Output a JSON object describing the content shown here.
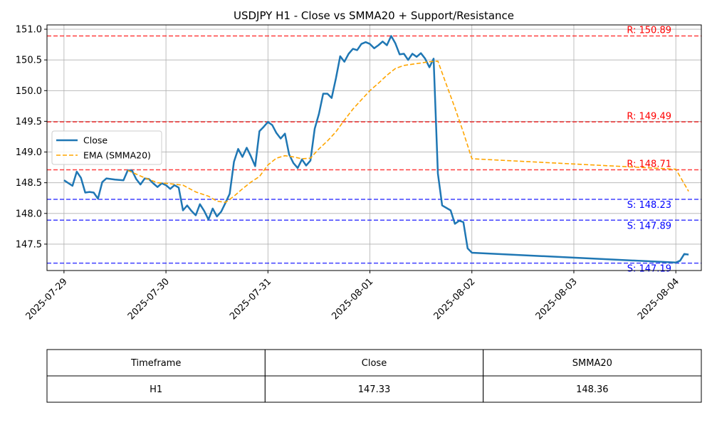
{
  "chart_data": {
    "type": "line",
    "title": "USDJPY H1 - Close vs SMMA20 + Support/Resistance",
    "xlabel": "",
    "ylabel": "",
    "x_ticks": [
      "2025-07-29",
      "2025-07-30",
      "2025-07-31",
      "2025-08-01",
      "2025-08-02",
      "2025-08-03",
      "2025-08-04"
    ],
    "y_ticks": [
      147.5,
      148.0,
      148.5,
      149.0,
      149.5,
      150.0,
      150.5,
      151.0
    ],
    "xlim": [
      "2025-07-28T20:00",
      "2025-08-04T06:00"
    ],
    "ylim": [
      147.07,
      151.07
    ],
    "grid": true,
    "legend": {
      "placement": "center-left",
      "entries": [
        "Close",
        "EMA (SMMA20)"
      ]
    },
    "colors": {
      "close": "#1f77b4",
      "ema": "#ffa500",
      "resistance": "#ff0000",
      "support": "#0000ff"
    },
    "series": [
      {
        "name": "Close",
        "x": [
          "2025-07-29T00:00",
          "2025-07-29T02:00",
          "2025-07-29T03:00",
          "2025-07-29T04:00",
          "2025-07-29T05:00",
          "2025-07-29T06:00",
          "2025-07-29T07:00",
          "2025-07-29T08:00",
          "2025-07-29T09:00",
          "2025-07-29T10:00",
          "2025-07-29T12:00",
          "2025-07-29T14:00",
          "2025-07-29T15:00",
          "2025-07-29T16:00",
          "2025-07-29T17:00",
          "2025-07-29T18:00",
          "2025-07-29T19:00",
          "2025-07-29T20:00",
          "2025-07-29T21:00",
          "2025-07-29T22:00",
          "2025-07-29T23:00",
          "2025-07-30T00:00",
          "2025-07-30T01:00",
          "2025-07-30T02:00",
          "2025-07-30T03:00",
          "2025-07-30T04:00",
          "2025-07-30T05:00",
          "2025-07-30T06:00",
          "2025-07-30T07:00",
          "2025-07-30T08:00",
          "2025-07-30T09:00",
          "2025-07-30T10:00",
          "2025-07-30T11:00",
          "2025-07-30T12:00",
          "2025-07-30T13:00",
          "2025-07-30T14:00",
          "2025-07-30T15:00",
          "2025-07-30T16:00",
          "2025-07-30T17:00",
          "2025-07-30T18:00",
          "2025-07-30T19:00",
          "2025-07-30T20:00",
          "2025-07-30T21:00",
          "2025-07-30T22:00",
          "2025-07-30T23:00",
          "2025-07-31T00:00",
          "2025-07-31T01:00",
          "2025-07-31T02:00",
          "2025-07-31T03:00",
          "2025-07-31T04:00",
          "2025-07-31T05:00",
          "2025-07-31T06:00",
          "2025-07-31T07:00",
          "2025-07-31T08:00",
          "2025-07-31T09:00",
          "2025-07-31T10:00",
          "2025-07-31T11:00",
          "2025-07-31T12:00",
          "2025-07-31T13:00",
          "2025-07-31T14:00",
          "2025-07-31T15:00",
          "2025-07-31T16:00",
          "2025-07-31T17:00",
          "2025-07-31T18:00",
          "2025-07-31T19:00",
          "2025-07-31T20:00",
          "2025-07-31T21:00",
          "2025-07-31T22:00",
          "2025-07-31T23:00",
          "2025-08-01T00:00",
          "2025-08-01T01:00",
          "2025-08-01T02:00",
          "2025-08-01T03:00",
          "2025-08-01T04:00",
          "2025-08-01T05:00",
          "2025-08-01T06:00",
          "2025-08-01T07:00",
          "2025-08-01T08:00",
          "2025-08-01T09:00",
          "2025-08-01T10:00",
          "2025-08-01T11:00",
          "2025-08-01T12:00",
          "2025-08-01T13:00",
          "2025-08-01T14:00",
          "2025-08-01T15:00",
          "2025-08-01T16:00",
          "2025-08-01T17:00",
          "2025-08-01T18:00",
          "2025-08-01T19:00",
          "2025-08-01T20:00",
          "2025-08-01T21:00",
          "2025-08-01T22:00",
          "2025-08-01T23:00",
          "2025-08-02T00:00",
          "2025-08-04T00:00",
          "2025-08-04T01:00",
          "2025-08-04T02:00",
          "2025-08-04T03:00"
        ],
        "y": [
          148.54,
          148.45,
          148.68,
          148.58,
          148.34,
          148.35,
          148.34,
          148.24,
          148.51,
          148.57,
          148.55,
          148.54,
          148.7,
          148.7,
          148.56,
          148.47,
          148.57,
          148.56,
          148.49,
          148.43,
          148.49,
          148.46,
          148.4,
          148.46,
          148.42,
          148.05,
          148.13,
          148.04,
          147.97,
          148.15,
          148.04,
          147.9,
          148.08,
          147.95,
          148.03,
          148.17,
          148.32,
          148.84,
          149.05,
          148.92,
          149.07,
          148.93,
          148.77,
          149.34,
          149.41,
          149.49,
          149.44,
          149.31,
          149.22,
          149.3,
          148.96,
          148.82,
          148.74,
          148.88,
          148.78,
          148.86,
          149.38,
          149.62,
          149.95,
          149.95,
          149.88,
          150.2,
          150.56,
          150.47,
          150.6,
          150.68,
          150.66,
          150.76,
          150.79,
          150.76,
          150.69,
          150.74,
          150.8,
          150.74,
          150.89,
          150.77,
          150.59,
          150.6,
          150.5,
          150.6,
          150.55,
          150.61,
          150.52,
          150.38,
          150.52,
          148.65,
          148.13,
          148.09,
          148.05,
          147.83,
          147.88,
          147.86,
          147.43,
          147.36,
          147.2,
          147.23,
          147.34,
          147.33
        ]
      },
      {
        "name": "EMA (SMMA20)",
        "x": [
          "2025-07-29T15:00",
          "2025-07-29T19:00",
          "2025-07-29T22:00",
          "2025-07-30T00:00",
          "2025-07-30T04:00",
          "2025-07-30T07:00",
          "2025-07-30T10:00",
          "2025-07-30T11:00",
          "2025-07-30T12:00",
          "2025-07-30T14:00",
          "2025-07-30T16:00",
          "2025-07-30T18:00",
          "2025-07-30T20:00",
          "2025-07-30T22:00",
          "2025-07-31T00:00",
          "2025-07-31T02:00",
          "2025-07-31T04:00",
          "2025-07-31T06:00",
          "2025-07-31T08:00",
          "2025-07-31T10:00",
          "2025-07-31T12:00",
          "2025-07-31T14:00",
          "2025-07-31T16:00",
          "2025-07-31T18:00",
          "2025-07-31T20:00",
          "2025-07-31T22:00",
          "2025-08-01T00:00",
          "2025-08-01T02:00",
          "2025-08-01T04:00",
          "2025-08-01T06:00",
          "2025-08-01T08:00",
          "2025-08-01T10:00",
          "2025-08-01T12:00",
          "2025-08-01T14:00",
          "2025-08-01T16:00",
          "2025-08-01T18:00",
          "2025-08-01T20:00",
          "2025-08-01T22:00",
          "2025-08-02T00:00",
          "2025-08-04T00:00",
          "2025-08-04T03:00"
        ],
        "y": [
          148.7,
          148.58,
          148.5,
          148.49,
          148.46,
          148.35,
          148.28,
          148.24,
          148.2,
          148.18,
          148.28,
          148.4,
          148.51,
          148.6,
          148.79,
          148.9,
          148.94,
          148.92,
          148.89,
          148.9,
          149.05,
          149.18,
          149.33,
          149.52,
          149.7,
          149.85,
          150.0,
          150.12,
          150.25,
          150.36,
          150.41,
          150.43,
          150.45,
          150.47,
          150.48,
          150.1,
          149.72,
          149.32,
          148.89,
          148.72,
          148.36
        ]
      }
    ],
    "hlines": [
      {
        "kind": "resistance",
        "value": 150.89,
        "label": "R: 150.89"
      },
      {
        "kind": "resistance",
        "value": 149.49,
        "label": "R: 149.49"
      },
      {
        "kind": "resistance",
        "value": 148.71,
        "label": "R: 148.71"
      },
      {
        "kind": "support",
        "value": 148.23,
        "label": "S: 148.23"
      },
      {
        "kind": "support",
        "value": 147.89,
        "label": "S: 147.89"
      },
      {
        "kind": "support",
        "value": 147.19,
        "label": "S: 147.19"
      }
    ],
    "table": {
      "headers": [
        "Timeframe",
        "Close",
        "SMMA20"
      ],
      "rows": [
        [
          "H1",
          "147.33",
          "148.36"
        ]
      ]
    }
  }
}
